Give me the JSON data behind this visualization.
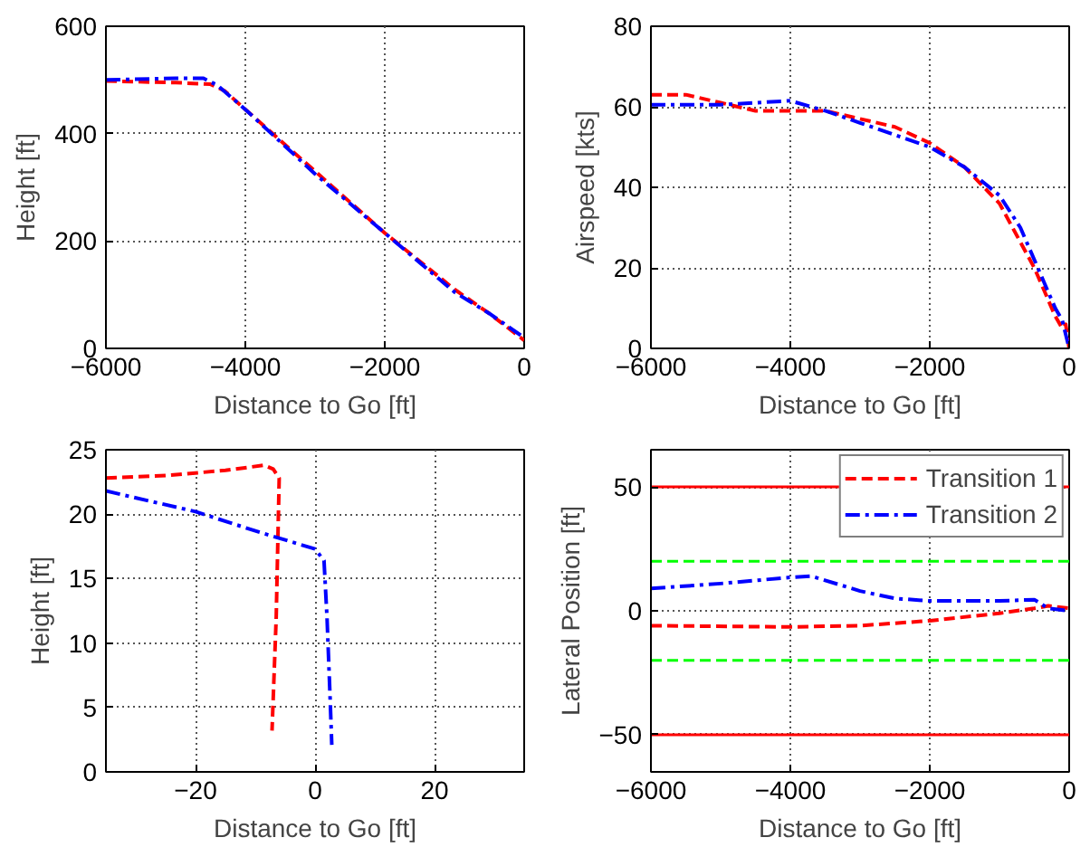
{
  "chart_data": [
    {
      "type": "line",
      "xlabel": "Distance to Go [ft]",
      "ylabel": "Height [ft]",
      "xlim": [
        -6000,
        0
      ],
      "xticks": [
        -6000,
        -4000,
        -2000,
        0
      ],
      "ylim": [
        0,
        600
      ],
      "yticks": [
        0,
        200,
        400,
        600
      ],
      "grid": true,
      "series": [
        {
          "color": "#ff0000",
          "line_style": "dashed",
          "x": [
            -6000,
            -5000,
            -4500,
            -4300,
            -4000,
            -3000,
            -2000,
            -1000,
            -500,
            -200,
            0
          ],
          "values": [
            498,
            495,
            492,
            480,
            445,
            330,
            215,
            110,
            65,
            35,
            15
          ]
        },
        {
          "color": "#0000ff",
          "line_style": "dashdot",
          "x": [
            -6000,
            -5000,
            -4600,
            -4400,
            -4000,
            -3000,
            -2000,
            -1000,
            -500,
            0
          ],
          "values": [
            500,
            503,
            503,
            490,
            445,
            325,
            215,
            105,
            65,
            20
          ]
        }
      ]
    },
    {
      "type": "line",
      "xlabel": "Distance to Go [ft]",
      "ylabel": "Airspeed [kts]",
      "xlim": [
        -6000,
        0
      ],
      "xticks": [
        -6000,
        -4000,
        -2000,
        0
      ],
      "ylim": [
        0,
        80
      ],
      "yticks": [
        0,
        20,
        40,
        60,
        80
      ],
      "grid": true,
      "series": [
        {
          "color": "#ff0000",
          "line_style": "dashed",
          "x": [
            -6000,
            -5500,
            -5000,
            -4500,
            -4000,
            -3500,
            -3000,
            -2500,
            -2000,
            -1500,
            -1000,
            -500,
            -200,
            -100,
            -50,
            0
          ],
          "values": [
            63,
            63,
            61,
            59,
            59,
            59,
            57,
            55,
            51,
            45,
            36,
            20,
            8,
            5,
            6,
            0
          ]
        },
        {
          "color": "#0000ff",
          "line_style": "dashdot",
          "x": [
            -6000,
            -5000,
            -4000,
            -3500,
            -3000,
            -2000,
            -1500,
            -1000,
            -700,
            -400,
            -200,
            -100,
            0
          ],
          "values": [
            60.5,
            60.5,
            61.5,
            59,
            56,
            50,
            45,
            38,
            30,
            18,
            10,
            7,
            0
          ]
        }
      ]
    },
    {
      "type": "line",
      "xlabel": "Distance to Go [ft]",
      "ylabel": "Height [ft]",
      "xlim": [
        -35,
        35
      ],
      "xticks": [
        -20,
        0,
        20
      ],
      "ylim": [
        0,
        25
      ],
      "yticks": [
        0,
        5,
        10,
        15,
        20,
        25
      ],
      "grid": true,
      "series": [
        {
          "color": "#ff0000",
          "line_style": "dashed",
          "x": [
            -35,
            -25,
            -15,
            -8.5,
            -7,
            -6,
            -6.5,
            -7.2
          ],
          "values": [
            22.8,
            23,
            23.4,
            23.8,
            23.5,
            22.8,
            12,
            3.2
          ]
        },
        {
          "color": "#0000ff",
          "line_style": "dashdot",
          "x": [
            -35,
            -20,
            -10,
            -5,
            0,
            1.5,
            2,
            2.5,
            2.8
          ],
          "values": [
            21.8,
            20.2,
            18.7,
            18,
            17.3,
            16.4,
            12,
            6,
            2.1
          ]
        }
      ]
    },
    {
      "type": "line",
      "xlabel": "Distance to Go [ft]",
      "ylabel": "Lateral Position [ft]",
      "xlim": [
        -6000,
        0
      ],
      "xticks": [
        -6000,
        -4000,
        -2000,
        0
      ],
      "ylim": [
        -65,
        65
      ],
      "yticks": [
        -50,
        0,
        50
      ],
      "grid": true,
      "legend": "top right",
      "ref_lines": [
        {
          "axis": "y",
          "value": 50,
          "color": "#ff0000",
          "line_style": "solid"
        },
        {
          "axis": "y",
          "value": -50,
          "color": "#ff0000",
          "line_style": "solid"
        },
        {
          "axis": "y",
          "value": 20,
          "color": "#00ff00",
          "line_style": "dashed"
        },
        {
          "axis": "y",
          "value": -20,
          "color": "#00ff00",
          "line_style": "dashed"
        }
      ],
      "series": [
        {
          "name": "Transition 1",
          "color": "#ff0000",
          "line_style": "dashed",
          "x": [
            -6000,
            -4000,
            -3000,
            -2000,
            -1000,
            -500,
            -300,
            0
          ],
          "values": [
            -6,
            -6.5,
            -6,
            -4,
            -1,
            1,
            2,
            1
          ]
        },
        {
          "name": "Transition 2",
          "color": "#0000ff",
          "line_style": "dashdot",
          "x": [
            -6000,
            -5000,
            -4000,
            -3700,
            -3000,
            -2500,
            -2000,
            -1000,
            -500,
            -300,
            0
          ],
          "values": [
            9,
            11,
            13.5,
            14,
            8,
            5,
            4,
            4,
            4.5,
            1,
            0
          ]
        }
      ]
    }
  ]
}
